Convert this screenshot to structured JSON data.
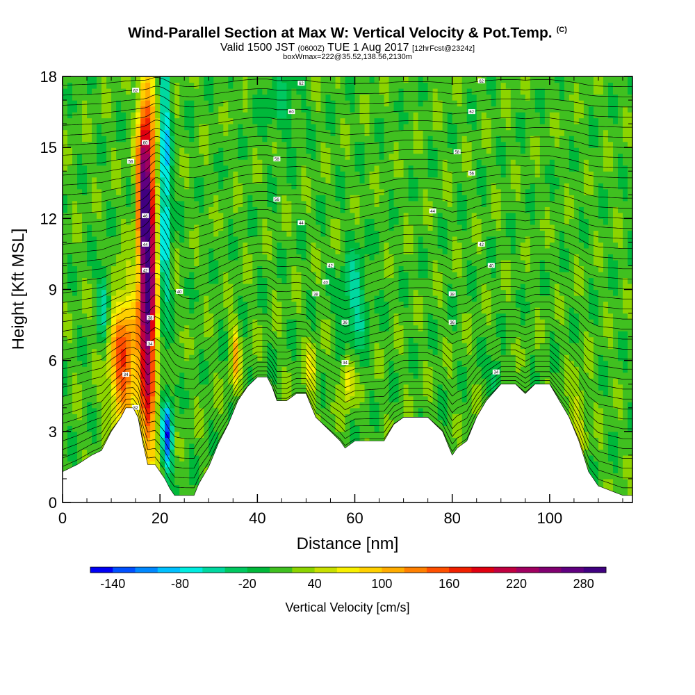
{
  "header": {
    "title": "Wind-Parallel Section at Max W: Vertical Velocity & Pot.Temp.",
    "copyright": "(C)",
    "valid_prefix": "Valid 1500 JST",
    "valid_utc": "(0600Z)",
    "valid_date": "TUE 1 Aug 2017",
    "forecast": "[12hrFcst@2324z]",
    "box_info": "boxWmax=222@35.52,138.56,2130m"
  },
  "chart_data": {
    "type": "heatmap",
    "title": "Wind-Parallel Section at Max W: Vertical Velocity & Pot.Temp.",
    "xlabel": "Distance [nm]",
    "ylabel": "Height [Kft MSL]",
    "xlim": [
      0,
      117
    ],
    "ylim": [
      0,
      18
    ],
    "x_ticks": [
      "0",
      "20",
      "40",
      "60",
      "80",
      "100"
    ],
    "x_tick_values": [
      0,
      20,
      40,
      60,
      80,
      100
    ],
    "y_ticks": [
      "0",
      "3",
      "6",
      "9",
      "12",
      "15",
      "18"
    ],
    "y_tick_values": [
      0,
      3,
      6,
      9,
      12,
      15,
      18
    ],
    "grid": false,
    "background_w": 10,
    "updrafts": [
      {
        "x": 17.5,
        "y": 9.5,
        "sx": 1.2,
        "sy": 5.0,
        "w": 280
      },
      {
        "x": 16.5,
        "y": 13.5,
        "sx": 0.9,
        "sy": 2.5,
        "w": 120
      },
      {
        "x": 12.5,
        "y": 6.0,
        "sx": 2.0,
        "sy": 2.0,
        "w": 150
      },
      {
        "x": 35.5,
        "y": 6.2,
        "sx": 0.6,
        "sy": 1.0,
        "w": 90
      },
      {
        "x": 58.5,
        "y": 5.2,
        "sx": 0.9,
        "sy": 0.8,
        "w": 70
      },
      {
        "x": 51,
        "y": 5.6,
        "sx": 1.0,
        "sy": 0.8,
        "w": 50
      },
      {
        "x": 106,
        "y": 3.8,
        "sx": 1.2,
        "sy": 1.2,
        "w": 40
      }
    ],
    "downdrafts": [
      {
        "x": 21.0,
        "y": 13.5,
        "sx": 0.8,
        "sy": 4.0,
        "w": -110
      },
      {
        "x": 21.5,
        "y": 2.8,
        "sx": 0.8,
        "sy": 1.0,
        "w": -140
      },
      {
        "x": 8.5,
        "y": 8.5,
        "sx": 0.9,
        "sy": 1.2,
        "w": -70
      },
      {
        "x": 60,
        "y": 8.5,
        "sx": 1.8,
        "sy": 1.5,
        "w": -60
      },
      {
        "x": 45,
        "y": 16.8,
        "sx": 3.0,
        "sy": 1.0,
        "w": -30
      },
      {
        "x": 89,
        "y": 5.2,
        "sx": 0.8,
        "sy": 0.6,
        "w": -60
      }
    ],
    "terrain": [
      {
        "x": 0,
        "y": 1.3
      },
      {
        "x": 3,
        "y": 1.6
      },
      {
        "x": 6,
        "y": 2.0
      },
      {
        "x": 8,
        "y": 2.2
      },
      {
        "x": 10,
        "y": 3.0
      },
      {
        "x": 12,
        "y": 3.6
      },
      {
        "x": 13,
        "y": 4.0
      },
      {
        "x": 14.5,
        "y": 4.0
      },
      {
        "x": 15.5,
        "y": 3.6
      },
      {
        "x": 16.5,
        "y": 2.5
      },
      {
        "x": 17.5,
        "y": 1.6
      },
      {
        "x": 19,
        "y": 1.6
      },
      {
        "x": 21,
        "y": 1.0
      },
      {
        "x": 22,
        "y": 0.6
      },
      {
        "x": 23,
        "y": 0.3
      },
      {
        "x": 27,
        "y": 0.3
      },
      {
        "x": 28,
        "y": 0.8
      },
      {
        "x": 30,
        "y": 1.5
      },
      {
        "x": 32,
        "y": 2.5
      },
      {
        "x": 34,
        "y": 3.3
      },
      {
        "x": 36,
        "y": 4.3
      },
      {
        "x": 38,
        "y": 4.9
      },
      {
        "x": 40,
        "y": 5.3
      },
      {
        "x": 42,
        "y": 5.3
      },
      {
        "x": 43,
        "y": 4.9
      },
      {
        "x": 44,
        "y": 4.3
      },
      {
        "x": 46,
        "y": 4.3
      },
      {
        "x": 48,
        "y": 4.6
      },
      {
        "x": 50,
        "y": 4.6
      },
      {
        "x": 52,
        "y": 3.6
      },
      {
        "x": 55,
        "y": 3.0
      },
      {
        "x": 57,
        "y": 2.6
      },
      {
        "x": 58,
        "y": 2.3
      },
      {
        "x": 60,
        "y": 2.6
      },
      {
        "x": 66,
        "y": 2.6
      },
      {
        "x": 68,
        "y": 3.3
      },
      {
        "x": 70,
        "y": 3.6
      },
      {
        "x": 75,
        "y": 3.6
      },
      {
        "x": 78,
        "y": 3.0
      },
      {
        "x": 80,
        "y": 2.0
      },
      {
        "x": 81,
        "y": 2.3
      },
      {
        "x": 83,
        "y": 2.6
      },
      {
        "x": 85,
        "y": 3.6
      },
      {
        "x": 87,
        "y": 4.3
      },
      {
        "x": 90,
        "y": 5.0
      },
      {
        "x": 93,
        "y": 5.0
      },
      {
        "x": 95,
        "y": 4.6
      },
      {
        "x": 97,
        "y": 5.0
      },
      {
        "x": 100,
        "y": 5.0
      },
      {
        "x": 102,
        "y": 4.3
      },
      {
        "x": 104,
        "y": 3.6
      },
      {
        "x": 106,
        "y": 2.6
      },
      {
        "x": 108,
        "y": 1.3
      },
      {
        "x": 110,
        "y": 0.7
      },
      {
        "x": 115,
        "y": 0.3
      },
      {
        "x": 117,
        "y": 0.3
      }
    ],
    "isentrope_labels": [
      {
        "text": "62",
        "x": 15,
        "y": 17.4
      },
      {
        "text": "62",
        "x": 49,
        "y": 17.7
      },
      {
        "text": "62",
        "x": 86,
        "y": 17.8
      },
      {
        "text": "60",
        "x": 47,
        "y": 16.5
      },
      {
        "text": "62",
        "x": 84,
        "y": 16.5
      },
      {
        "text": "60",
        "x": 17,
        "y": 15.2
      },
      {
        "text": "58",
        "x": 81,
        "y": 14.8
      },
      {
        "text": "58",
        "x": 44,
        "y": 14.5
      },
      {
        "text": "56",
        "x": 14,
        "y": 14.4
      },
      {
        "text": "56",
        "x": 84,
        "y": 13.9
      },
      {
        "text": "56",
        "x": 44,
        "y": 12.8
      },
      {
        "text": "44",
        "x": 76,
        "y": 12.3
      },
      {
        "text": "46",
        "x": 17,
        "y": 12.1
      },
      {
        "text": "44",
        "x": 49,
        "y": 11.8
      },
      {
        "text": "44",
        "x": 17,
        "y": 10.9
      },
      {
        "text": "42",
        "x": 86,
        "y": 10.9
      },
      {
        "text": "42",
        "x": 55,
        "y": 10.0
      },
      {
        "text": "42",
        "x": 17,
        "y": 9.8
      },
      {
        "text": "40",
        "x": 88,
        "y": 10.0
      },
      {
        "text": "40",
        "x": 54,
        "y": 9.3
      },
      {
        "text": "40",
        "x": 24,
        "y": 8.9
      },
      {
        "text": "38",
        "x": 52,
        "y": 8.8
      },
      {
        "text": "38",
        "x": 80,
        "y": 8.8
      },
      {
        "text": "38",
        "x": 18,
        "y": 7.8
      },
      {
        "text": "36",
        "x": 58,
        "y": 7.6
      },
      {
        "text": "36",
        "x": 80,
        "y": 7.6
      },
      {
        "text": "34",
        "x": 18,
        "y": 6.7
      },
      {
        "text": "34",
        "x": 58,
        "y": 5.9
      },
      {
        "text": "34",
        "x": 13,
        "y": 5.4
      },
      {
        "text": "34",
        "x": 89,
        "y": 5.5
      },
      {
        "text": "32",
        "x": 15,
        "y": 4.0
      }
    ],
    "colorbar": {
      "label": "Vertical Velocity [cm/s]",
      "tick_labels": [
        "-140",
        "-80",
        "-20",
        "40",
        "100",
        "160",
        "220",
        "280"
      ],
      "tick_values": [
        -140,
        -80,
        -20,
        40,
        100,
        160,
        220,
        280
      ],
      "min": -160,
      "max": 300,
      "step": 20,
      "colors": [
        "#0000f4",
        "#0050ff",
        "#0088ff",
        "#00c0ff",
        "#00ece0",
        "#00d8a0",
        "#00c860",
        "#00b83a",
        "#40c020",
        "#8cd400",
        "#c8e000",
        "#f8f000",
        "#ffd000",
        "#ffac00",
        "#ff8000",
        "#ff5000",
        "#f02000",
        "#e00010",
        "#c00040",
        "#a00060",
        "#800070",
        "#600080",
        "#400080"
      ]
    }
  }
}
